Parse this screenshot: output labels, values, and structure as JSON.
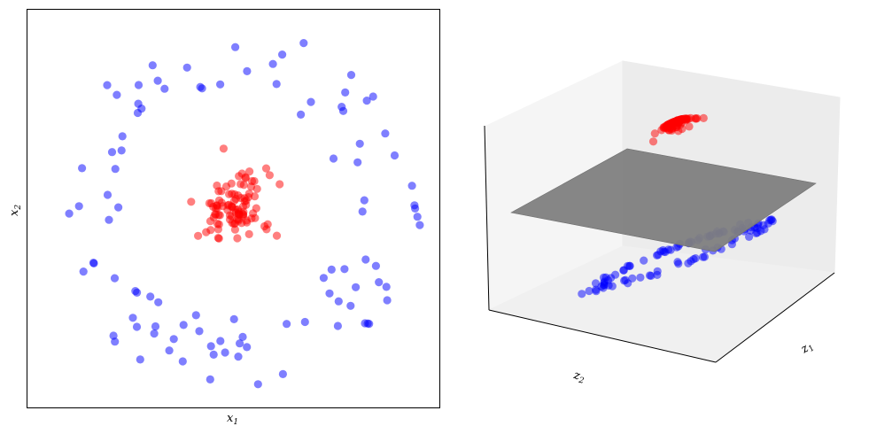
{
  "chart_data": [
    {
      "type": "scatter",
      "xlabel": "x",
      "xlabel_sub": "1",
      "ylabel": "x",
      "ylabel_sub": "2",
      "xlim": [
        -1.1,
        1.1
      ],
      "ylim": [
        -1.1,
        1.1
      ],
      "ticks": "none",
      "grid": false,
      "series": [
        {
          "color": "#0000ff",
          "marker": "circle",
          "alpha": 0.5,
          "count": 100,
          "shape": "ring",
          "radius_range": [
            0.6,
            1.0
          ]
        },
        {
          "color": "#ff0000",
          "marker": "circle",
          "alpha": 0.5,
          "count": 100,
          "shape": "cluster",
          "radius_range": [
            0.0,
            0.3
          ]
        }
      ]
    },
    {
      "type": "scatter3d",
      "xlabel": "z",
      "xlabel_sub": "1",
      "ylabel": "z",
      "ylabel_sub": "2",
      "ticks": "none",
      "plane_color": "#808080",
      "series": [
        {
          "color": "#0000ff",
          "alpha": 0.5,
          "count": 100,
          "position": "below-plane"
        },
        {
          "color": "#ff0000",
          "alpha": 0.5,
          "count": 100,
          "position": "above-plane"
        }
      ]
    }
  ]
}
